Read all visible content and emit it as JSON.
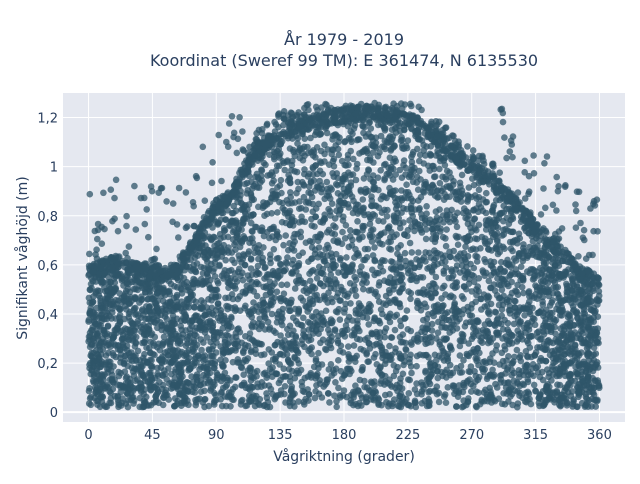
{
  "chart_data": {
    "type": "scatter",
    "title_line1": "År 1979 - 2019",
    "title_line2": "Koordinat (Sweref 99 TM): E 361474, N 6135530",
    "xlabel": "Vågriktning (grader)",
    "ylabel": "Signifikant våghöjd (m)",
    "xlim": [
      -18,
      378
    ],
    "ylim": [
      -0.04,
      1.3
    ],
    "x_ticks": [
      0,
      45,
      90,
      135,
      180,
      225,
      270,
      315,
      360
    ],
    "x_tick_labels": [
      "0",
      "45",
      "90",
      "135",
      "180",
      "225",
      "270",
      "315",
      "360"
    ],
    "y_ticks": [
      0,
      0.2,
      0.4,
      0.6,
      0.8,
      1.0,
      1.2
    ],
    "y_tick_labels": [
      "0",
      "0,2",
      "0,4",
      "0,6",
      "0,8",
      "1",
      "1,2"
    ],
    "grid": true,
    "marker_color": "#2f5569",
    "plot_bg": "#e5e8f0",
    "envelope": {
      "x": [
        0,
        10,
        20,
        30,
        45,
        60,
        75,
        90,
        100,
        110,
        120,
        135,
        150,
        165,
        180,
        195,
        210,
        225,
        240,
        255,
        270,
        285,
        300,
        315,
        330,
        345,
        355,
        360
      ],
      "y_max": [
        0.6,
        0.62,
        0.64,
        0.62,
        0.6,
        0.6,
        0.72,
        0.87,
        0.9,
        1.02,
        1.1,
        1.17,
        1.2,
        1.22,
        1.24,
        1.25,
        1.24,
        1.22,
        1.17,
        1.1,
        1.02,
        0.97,
        0.88,
        0.78,
        0.7,
        0.6,
        0.57,
        0.55
      ],
      "y_min": 0.02
    }
  }
}
